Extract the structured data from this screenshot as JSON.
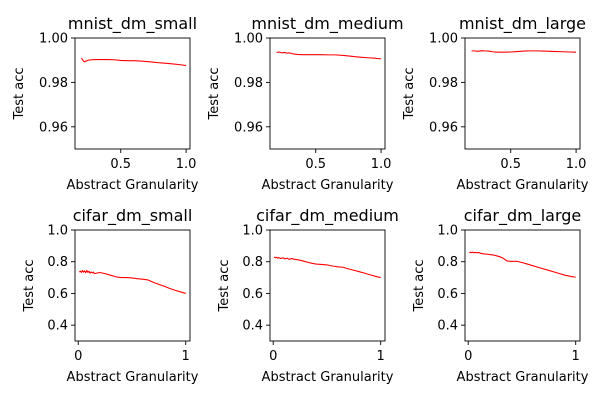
{
  "chart_data": [
    {
      "type": "line",
      "title": "mnist_dm_small",
      "xlabel": "Abstract Granularity",
      "ylabel": "Test acc",
      "xlim": [
        0.15,
        1.03
      ],
      "ylim": [
        0.95,
        1.0
      ],
      "xticks": [
        0.5,
        1.0
      ],
      "xtick_labels": [
        "0.5",
        "1.0"
      ],
      "yticks": [
        0.96,
        0.98,
        1.0
      ],
      "ytick_labels": [
        "0.96",
        "0.98",
        "1.00"
      ],
      "series": [
        {
          "color": "#ff0000",
          "x": [
            0.2,
            0.21,
            0.22,
            0.23,
            0.25,
            0.28,
            0.3,
            0.35,
            0.4,
            0.45,
            0.5,
            0.55,
            0.6,
            0.65,
            0.7,
            0.75,
            0.8,
            0.85,
            0.9,
            0.95,
            1.0
          ],
          "y": [
            0.991,
            0.99,
            0.9893,
            0.9895,
            0.99,
            0.9902,
            0.9903,
            0.9903,
            0.9903,
            0.9902,
            0.9899,
            0.9898,
            0.9898,
            0.9896,
            0.9894,
            0.9891,
            0.9888,
            0.9886,
            0.9883,
            0.988,
            0.9876
          ]
        }
      ]
    },
    {
      "type": "line",
      "title": "mnist_dm_medium",
      "xlabel": "Abstract Granularity",
      "ylabel": "Test acc",
      "xlim": [
        0.15,
        1.03
      ],
      "ylim": [
        0.95,
        1.0
      ],
      "xticks": [
        0.5,
        1.0
      ],
      "xtick_labels": [
        "0.5",
        "1.0"
      ],
      "yticks": [
        0.96,
        0.98,
        1.0
      ],
      "ytick_labels": [
        "0.96",
        "0.98",
        "1.00"
      ],
      "series": [
        {
          "color": "#ff0000",
          "x": [
            0.2,
            0.22,
            0.24,
            0.26,
            0.28,
            0.3,
            0.33,
            0.36,
            0.4,
            0.45,
            0.5,
            0.55,
            0.6,
            0.65,
            0.7,
            0.75,
            0.8,
            0.85,
            0.9,
            0.95,
            1.0
          ],
          "y": [
            0.9935,
            0.9937,
            0.9933,
            0.9935,
            0.9932,
            0.9933,
            0.9928,
            0.9926,
            0.9925,
            0.9925,
            0.9925,
            0.9925,
            0.9924,
            0.9924,
            0.9922,
            0.9919,
            0.9916,
            0.9913,
            0.9911,
            0.9909,
            0.9906
          ]
        }
      ]
    },
    {
      "type": "line",
      "title": "mnist_dm_large",
      "xlabel": "Abstract Granularity",
      "ylabel": "Test acc",
      "xlim": [
        0.15,
        1.03
      ],
      "ylim": [
        0.95,
        1.0
      ],
      "xticks": [
        0.5,
        1.0
      ],
      "xtick_labels": [
        "0.5",
        "1.0"
      ],
      "yticks": [
        0.96,
        0.98,
        1.0
      ],
      "ytick_labels": [
        "0.96",
        "0.98",
        "1.00"
      ],
      "series": [
        {
          "color": "#ff0000",
          "x": [
            0.2,
            0.22,
            0.25,
            0.28,
            0.3,
            0.33,
            0.36,
            0.4,
            0.45,
            0.5,
            0.55,
            0.6,
            0.65,
            0.7,
            0.75,
            0.8,
            0.85,
            0.9,
            0.95,
            1.0
          ],
          "y": [
            0.9942,
            0.9942,
            0.994,
            0.9943,
            0.9942,
            0.9941,
            0.9938,
            0.9936,
            0.9936,
            0.9937,
            0.9939,
            0.9941,
            0.9942,
            0.9942,
            0.9941,
            0.994,
            0.9939,
            0.9938,
            0.9937,
            0.9936
          ]
        }
      ]
    },
    {
      "type": "line",
      "title": "cifar_dm_small",
      "xlabel": "Abstract Granularity",
      "ylabel": "Test acc",
      "xlim": [
        -0.03,
        1.04
      ],
      "ylim": [
        0.3,
        1.0
      ],
      "xticks": [
        0,
        1
      ],
      "xtick_labels": [
        "0",
        "1"
      ],
      "yticks": [
        0.4,
        0.6,
        0.8,
        1.0
      ],
      "ytick_labels": [
        "0.4",
        "0.6",
        "0.8",
        "1.0"
      ],
      "series": [
        {
          "color": "#ff0000",
          "x": [
            0.01,
            0.02,
            0.03,
            0.04,
            0.05,
            0.06,
            0.07,
            0.08,
            0.09,
            0.1,
            0.11,
            0.12,
            0.13,
            0.14,
            0.15,
            0.17,
            0.2,
            0.25,
            0.3,
            0.35,
            0.4,
            0.45,
            0.5,
            0.55,
            0.6,
            0.65,
            0.7,
            0.75,
            0.8,
            0.85,
            0.9,
            0.95,
            1.0
          ],
          "y": [
            0.735,
            0.74,
            0.733,
            0.745,
            0.735,
            0.742,
            0.73,
            0.745,
            0.733,
            0.74,
            0.728,
            0.735,
            0.73,
            0.735,
            0.725,
            0.728,
            0.732,
            0.725,
            0.715,
            0.705,
            0.7,
            0.7,
            0.698,
            0.693,
            0.69,
            0.685,
            0.67,
            0.657,
            0.645,
            0.632,
            0.62,
            0.61,
            0.6
          ]
        }
      ]
    },
    {
      "type": "line",
      "title": "cifar_dm_medium",
      "xlabel": "Abstract Granularity",
      "ylabel": "Test acc",
      "xlim": [
        -0.03,
        1.04
      ],
      "ylim": [
        0.3,
        1.0
      ],
      "xticks": [
        0,
        1
      ],
      "xtick_labels": [
        "0",
        "1"
      ],
      "yticks": [
        0.4,
        0.6,
        0.8,
        1.0
      ],
      "ytick_labels": [
        "0.4",
        "0.6",
        "0.8",
        "1.0"
      ],
      "series": [
        {
          "color": "#ff0000",
          "x": [
            0.01,
            0.02,
            0.03,
            0.04,
            0.05,
            0.07,
            0.09,
            0.11,
            0.13,
            0.15,
            0.17,
            0.2,
            0.23,
            0.26,
            0.3,
            0.33,
            0.36,
            0.4,
            0.45,
            0.5,
            0.55,
            0.6,
            0.65,
            0.7,
            0.75,
            0.8,
            0.85,
            0.9,
            0.95,
            1.0
          ],
          "y": [
            0.83,
            0.825,
            0.828,
            0.822,
            0.826,
            0.82,
            0.825,
            0.818,
            0.822,
            0.815,
            0.82,
            0.815,
            0.812,
            0.808,
            0.8,
            0.795,
            0.79,
            0.785,
            0.783,
            0.78,
            0.773,
            0.768,
            0.765,
            0.755,
            0.746,
            0.737,
            0.728,
            0.718,
            0.708,
            0.7
          ]
        }
      ]
    },
    {
      "type": "line",
      "title": "cifar_dm_large",
      "xlabel": "Abstract Granularity",
      "ylabel": "Test acc",
      "xlim": [
        -0.03,
        1.04
      ],
      "ylim": [
        0.3,
        1.0
      ],
      "xticks": [
        0,
        1
      ],
      "xtick_labels": [
        "0",
        "1"
      ],
      "yticks": [
        0.4,
        0.6,
        0.8,
        1.0
      ],
      "ytick_labels": [
        "0.4",
        "0.6",
        "0.8",
        "1.0"
      ],
      "series": [
        {
          "color": "#ff0000",
          "x": [
            0.01,
            0.02,
            0.03,
            0.04,
            0.05,
            0.06,
            0.08,
            0.1,
            0.12,
            0.14,
            0.16,
            0.18,
            0.2,
            0.23,
            0.26,
            0.3,
            0.33,
            0.36,
            0.4,
            0.45,
            0.5,
            0.55,
            0.6,
            0.65,
            0.7,
            0.75,
            0.8,
            0.85,
            0.9,
            0.95,
            1.0
          ],
          "y": [
            0.855,
            0.86,
            0.857,
            0.861,
            0.856,
            0.859,
            0.856,
            0.858,
            0.852,
            0.85,
            0.848,
            0.847,
            0.845,
            0.843,
            0.838,
            0.83,
            0.82,
            0.805,
            0.802,
            0.803,
            0.795,
            0.785,
            0.775,
            0.765,
            0.755,
            0.745,
            0.735,
            0.725,
            0.715,
            0.708,
            0.702
          ]
        }
      ]
    }
  ]
}
